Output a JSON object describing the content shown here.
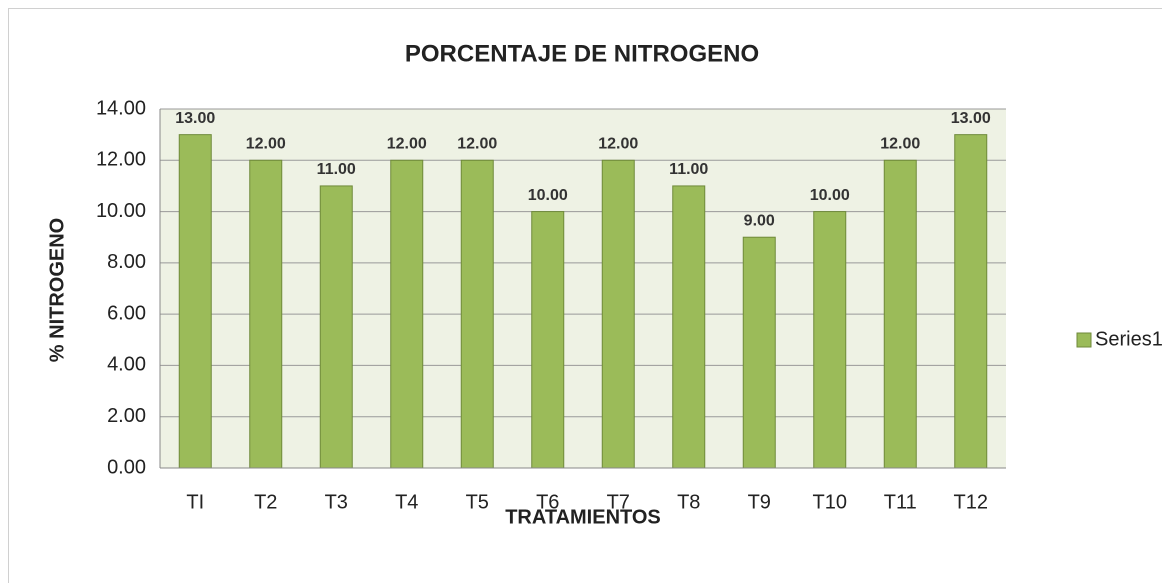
{
  "chart_data": {
    "type": "bar",
    "title": "PORCENTAJE DE NITROGENO",
    "x_label": "TRATAMIENTOS",
    "y_label": "% NITROGENO",
    "categories": [
      "TI",
      "T2",
      "T3",
      "T4",
      "T5",
      "T6",
      "T7",
      "T8",
      "T9",
      "T10",
      "T11",
      "T12"
    ],
    "series": [
      {
        "name": "Series1",
        "color": "#9bbb59",
        "values": [
          13,
          12,
          11,
          12,
          12,
          10,
          12,
          11,
          9,
          10,
          12,
          13
        ],
        "value_labels": [
          "13.00",
          "12.00",
          "11.00",
          "12.00",
          "12.00",
          "10.00",
          "12.00",
          "11.00",
          "9.00",
          "10.00",
          "12.00",
          "13.00"
        ]
      }
    ],
    "ylim": [
      0,
      14
    ],
    "yticks": [
      {
        "value": 0,
        "label": "0.00"
      },
      {
        "value": 2,
        "label": "2.00"
      },
      {
        "value": 4,
        "label": "4.00"
      },
      {
        "value": 6,
        "label": "6.00"
      },
      {
        "value": 8,
        "label": "8.00"
      },
      {
        "value": 10,
        "label": "10.00"
      },
      {
        "value": 12,
        "label": "12.00"
      },
      {
        "value": 14,
        "label": "14.00"
      }
    ],
    "grid": true,
    "legend": "right"
  }
}
